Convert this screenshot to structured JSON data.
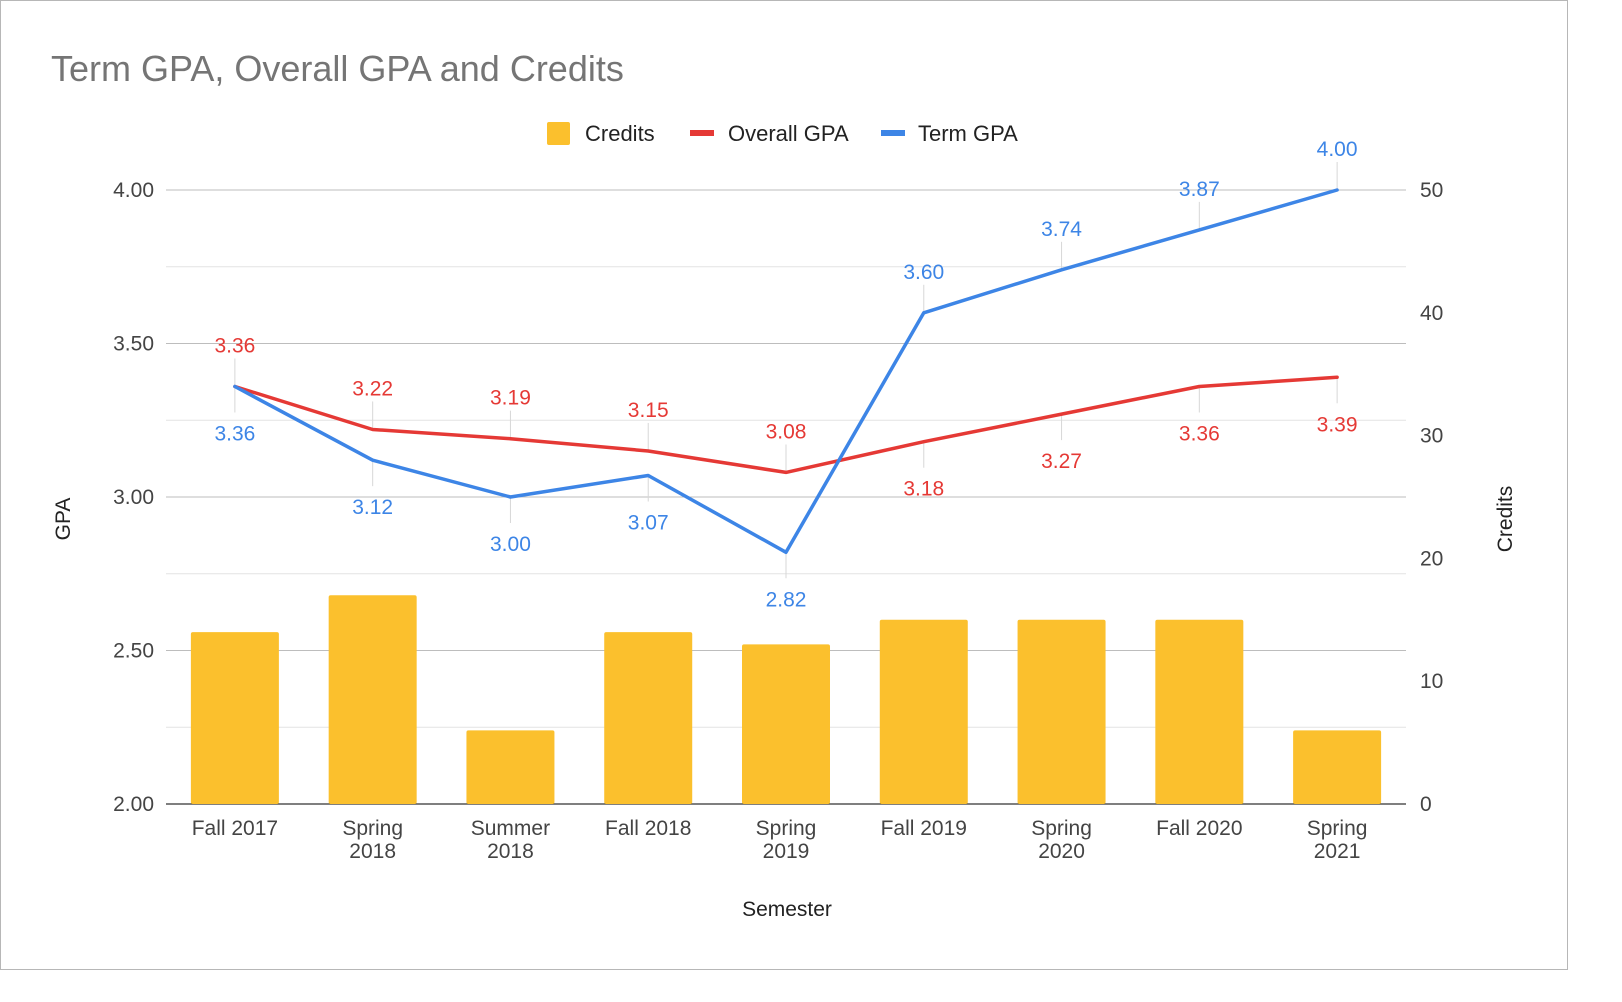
{
  "chart_data": {
    "type": "combo",
    "title": "Term GPA, Overall GPA and Credits",
    "xlabel": "Semester",
    "ylabel_left": "GPA",
    "ylabel_right": "Credits",
    "ylim_left": [
      2.0,
      4.0
    ],
    "ylim_right": [
      0,
      50
    ],
    "yticks_left": [
      "4.00",
      "3.50",
      "3.00",
      "2.50",
      "2.00"
    ],
    "yticks_right": [
      "50",
      "40",
      "30",
      "20",
      "10",
      "0"
    ],
    "grid": true,
    "legend_position": "top",
    "categories": [
      [
        "Fall 2017"
      ],
      [
        "Spring",
        "2018"
      ],
      [
        "Summer",
        "2018"
      ],
      [
        "Fall 2018"
      ],
      [
        "Spring",
        "2019"
      ],
      [
        "Fall 2019"
      ],
      [
        "Spring",
        "2020"
      ],
      [
        "Fall 2020"
      ],
      [
        "Spring",
        "2021"
      ]
    ],
    "series": [
      {
        "name": "Credits",
        "type": "bar",
        "axis": "right",
        "color": "#fbc02d",
        "values": [
          14,
          17,
          6,
          14,
          13,
          15,
          15,
          15,
          6
        ]
      },
      {
        "name": "Overall GPA",
        "type": "line",
        "axis": "left",
        "color": "#e53935",
        "values": [
          3.36,
          3.22,
          3.19,
          3.15,
          3.08,
          3.18,
          3.27,
          3.36,
          3.39
        ],
        "labels": [
          "3.36",
          "3.22",
          "3.19",
          "3.15",
          "3.08",
          "3.18",
          "3.27",
          "3.36",
          "3.39"
        ]
      },
      {
        "name": "Term GPA",
        "type": "line",
        "axis": "left",
        "color": "#3d85e6",
        "values": [
          3.36,
          3.12,
          3.0,
          3.07,
          2.82,
          3.6,
          3.74,
          3.87,
          4.0
        ],
        "labels": [
          "3.36",
          "3.12",
          "3.00",
          "3.07",
          "2.82",
          "3.60",
          "3.74",
          "3.87",
          "4.00"
        ]
      }
    ]
  }
}
